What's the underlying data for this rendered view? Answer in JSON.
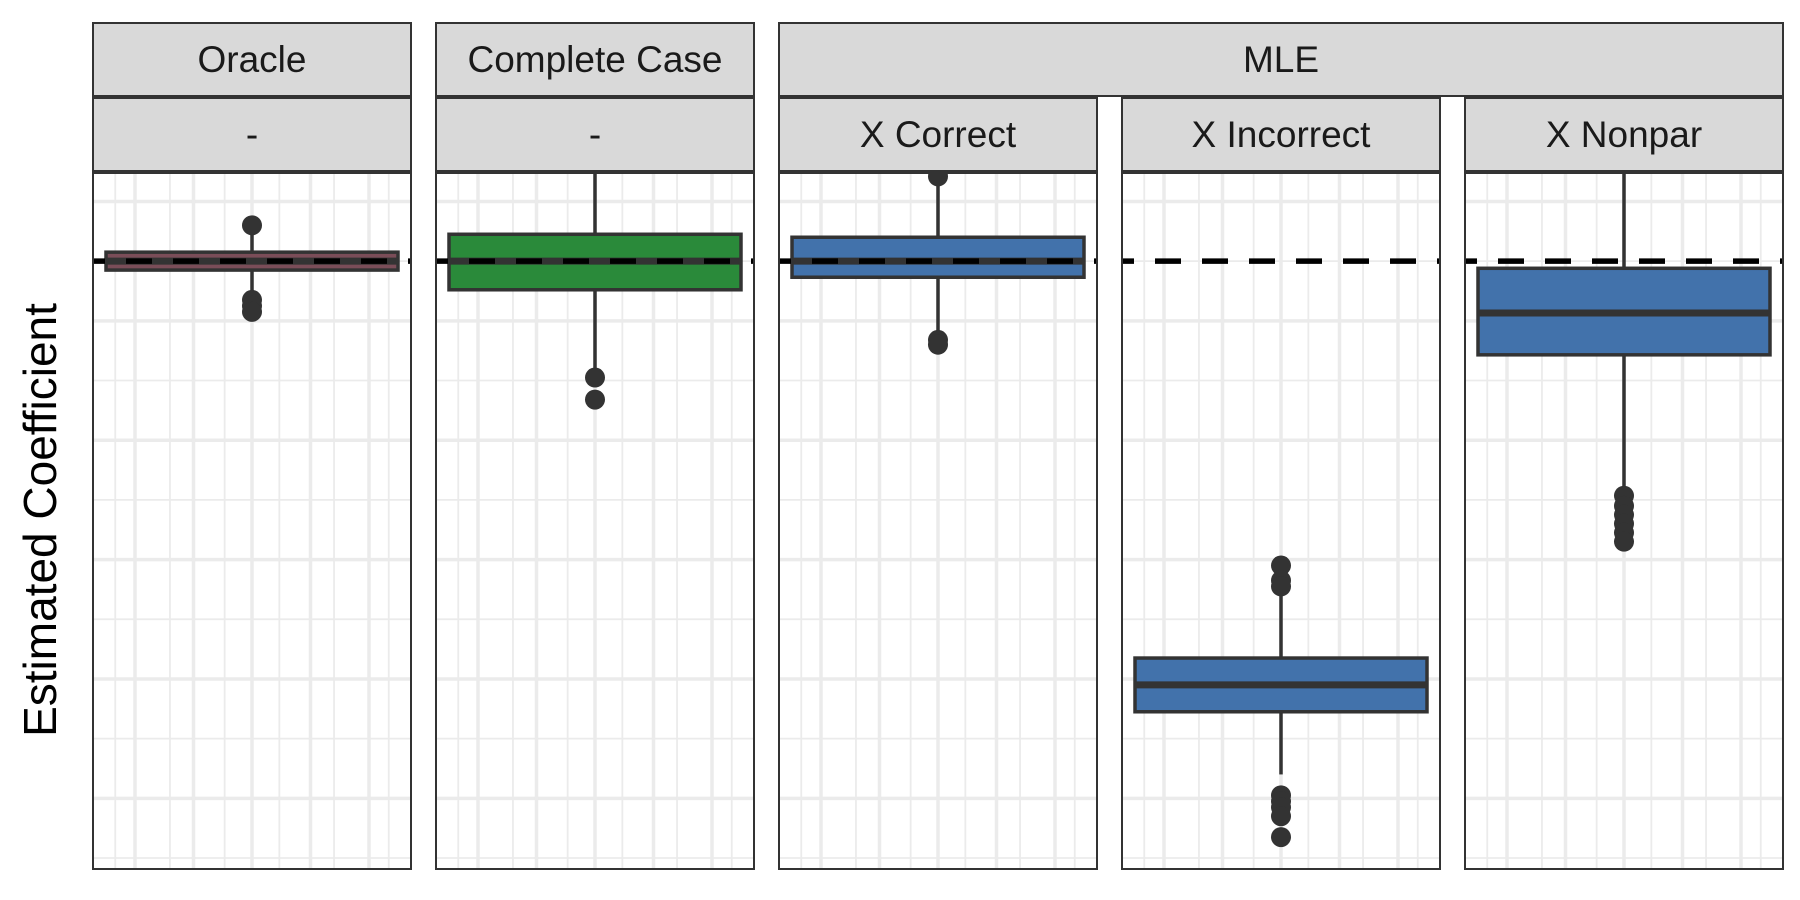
{
  "chart_data": {
    "type": "box",
    "ylabel": "Estimated Coefficient",
    "xlabel": "",
    "reference_value": 0,
    "ylim": [
      -1.0,
      0.28
    ],
    "grid": true,
    "y_ticks_unlabeled": [
      -0.9,
      -0.7,
      -0.5,
      -0.3,
      -0.1,
      0.1
    ],
    "colors": {
      "oracle": "#7a4d58",
      "complete_case": "#2a8a3a",
      "mle": "#4272ab",
      "strip_bg": "#d9d9d9",
      "outline": "#333333"
    },
    "top_strips": [
      {
        "label": "Oracle",
        "panels": [
          0
        ]
      },
      {
        "label": "Complete Case",
        "panels": [
          1
        ]
      },
      {
        "label": "MLE",
        "panels": [
          2,
          3,
          4
        ]
      }
    ],
    "panels": [
      {
        "method": "Oracle",
        "covariate": "-",
        "color_key": "oracle",
        "box": {
          "q1": -0.015,
          "median": 0.0,
          "q3": 0.015,
          "whisker_low": -0.055,
          "whisker_high": 0.06
        },
        "outliers": [
          0.06,
          -0.065,
          -0.075,
          -0.085
        ]
      },
      {
        "method": "Complete Case",
        "covariate": "-",
        "color_key": "complete_case",
        "box": {
          "q1": -0.048,
          "median": 0.0,
          "q3": 0.045,
          "whisker_low": -0.195,
          "whisker_high": 0.23
        },
        "outliers": [
          0.23,
          0.21,
          0.195,
          0.188,
          -0.195,
          -0.232
        ]
      },
      {
        "method": "MLE",
        "covariate": "X Correct",
        "color_key": "mle",
        "box": {
          "q1": -0.027,
          "median": 0.0,
          "q3": 0.04,
          "whisker_low": -0.13,
          "whisker_high": 0.155
        },
        "outliers": [
          0.158,
          0.15,
          0.142,
          -0.132,
          -0.14
        ]
      },
      {
        "method": "MLE",
        "covariate": "X Incorrect",
        "color_key": "mle",
        "box": {
          "q1": -0.755,
          "median": -0.71,
          "q3": -0.665,
          "whisker_low": -0.86,
          "whisker_high": -0.51
        },
        "outliers": [
          -0.51,
          -0.535,
          -0.545,
          -0.895,
          -0.905,
          -0.915,
          -0.93,
          -0.965
        ]
      },
      {
        "method": "MLE",
        "covariate": "X Nonpar",
        "color_key": "mle",
        "box": {
          "q1": -0.157,
          "median": -0.087,
          "q3": -0.012,
          "whisker_low": -0.395,
          "whisker_high": 0.178
        },
        "outliers": [
          -0.393,
          -0.41,
          -0.425,
          -0.44,
          -0.455,
          -0.47
        ]
      }
    ]
  }
}
